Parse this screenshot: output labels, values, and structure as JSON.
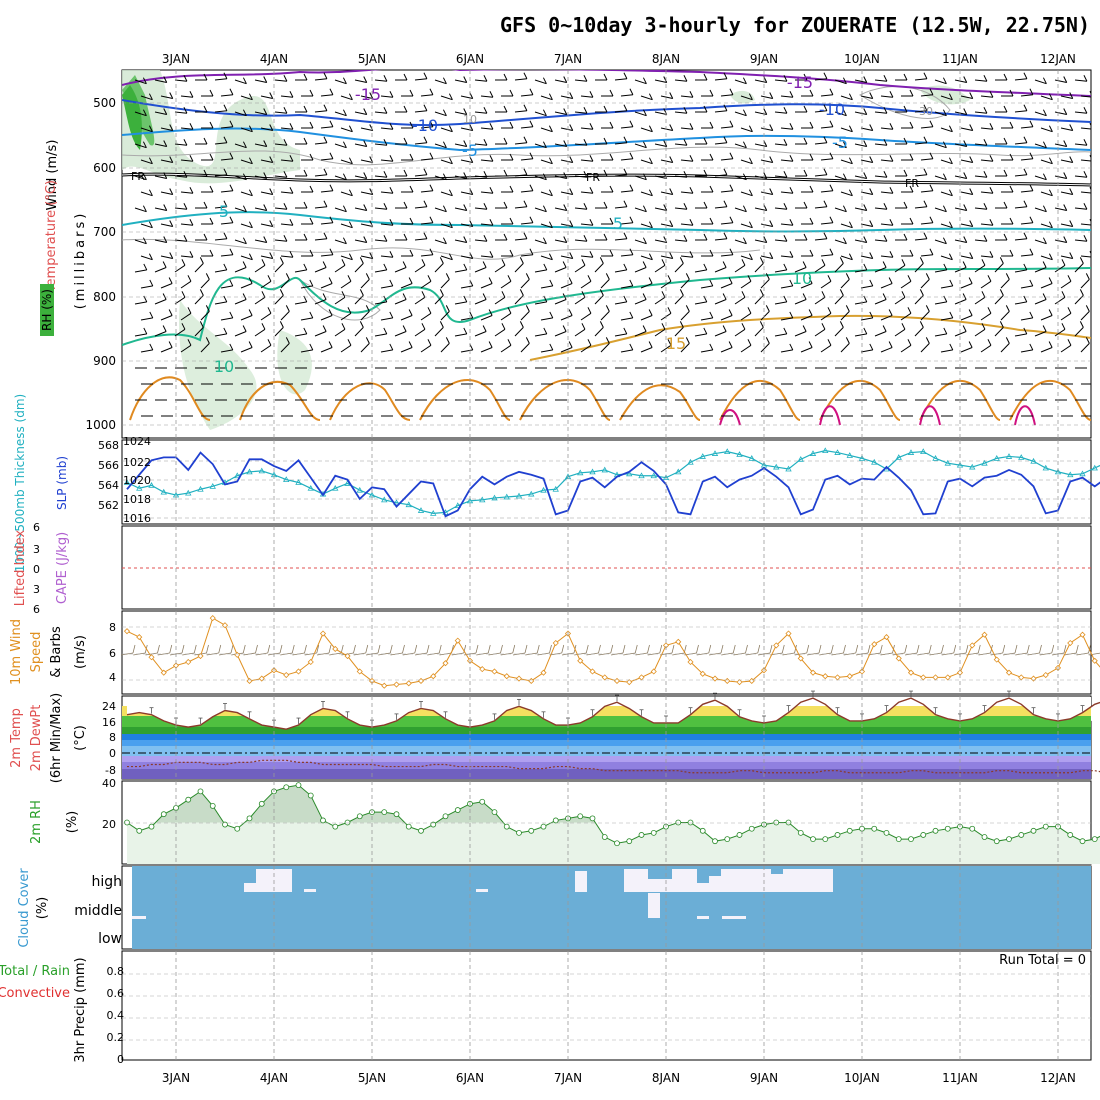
{
  "title": "GFS 0~10day 3-hourly for ZOUERATE (12.5W, 22.75N)",
  "date_labels": [
    "3JAN",
    "4JAN",
    "5JAN",
    "6JAN",
    "7JAN",
    "8JAN",
    "9JAN",
    "10JAN",
    "11JAN",
    "12JAN"
  ],
  "colors": {
    "temp_label": "#e05050",
    "rh_label": "#2aa02a",
    "cape_label": "#b060d0",
    "thick_label": "#20b0c0",
    "slp_label": "#2040d0",
    "wind_label": "#e09020",
    "cloud_label": "#3a9ad0",
    "cloud_bg": "#6baed6",
    "precip_total": "#2aa02a",
    "precip_conv": "#e03030",
    "rh_fill": "#e8f3e8",
    "rh_line": "#2a8a2a"
  },
  "panels": {
    "profile": {
      "ylabel_wind": "Wind (m/s)",
      "ylabel_temp": "Temperature (°C)",
      "ylabel_rh": "RH (%)",
      "ylabel_mb": "(millibars)",
      "yticks": [
        "500",
        "600",
        "700",
        "800",
        "900",
        "1000"
      ],
      "contour_labels": [
        {
          "text": "-15",
          "color": "#8020b0"
        },
        {
          "text": "-15",
          "color": "#8020b0"
        },
        {
          "text": "-10",
          "color": "#2050d0"
        },
        {
          "text": "-10",
          "color": "#2050d0"
        },
        {
          "text": "-5",
          "color": "#2090e0"
        },
        {
          "text": "-5",
          "color": "#2090e0"
        },
        {
          "text": "FR",
          "color": "#000000"
        },
        {
          "text": "FR",
          "color": "#000000"
        },
        {
          "text": "FR",
          "color": "#000000"
        },
        {
          "text": "5",
          "color": "#20b0c0"
        },
        {
          "text": "5",
          "color": "#20b0c0"
        },
        {
          "text": "10",
          "color": "#20b890"
        },
        {
          "text": "10",
          "color": "#20b890"
        },
        {
          "text": "15",
          "color": "#d8a030"
        },
        {
          "text": "10",
          "color": "#999999"
        },
        {
          "text": "30",
          "color": "#999999"
        }
      ]
    },
    "slp": {
      "ylabel_thick": "1000~500mb Thickness (dm)",
      "ylabel_slp": "SLP (mb)",
      "left_ticks": [
        "568",
        "566",
        "564",
        "562"
      ],
      "right_ticks": [
        "1024",
        "1022",
        "1020",
        "1018",
        "1016"
      ]
    },
    "cape": {
      "ylabel_li": "Lifted Index",
      "ylabel_cape": "CAPE (J/kg)",
      "yticks": [
        "6",
        "3",
        "0",
        "3",
        "6"
      ]
    },
    "wind10": {
      "ylabel_1": "10m Wind",
      "ylabel_2": "Speed",
      "ylabel_3": "& Barbs",
      "ylabel_unit": "(m/s)",
      "yticks": [
        "8",
        "6",
        "4"
      ]
    },
    "temp2m": {
      "ylabel_1": "2m Temp",
      "ylabel_2": "2m DewPt",
      "ylabel_3": "(6hr Min/Max)",
      "ylabel_unit": "(°C)",
      "yticks": [
        "24",
        "16",
        "8",
        "0",
        "-8"
      ]
    },
    "rh2m": {
      "ylabel": "2m RH",
      "ylabel_unit": "(%)",
      "yticks": [
        "40",
        "20"
      ]
    },
    "cloud": {
      "ylabel": "Cloud Cover",
      "ylabel_unit": "(%)",
      "levels": [
        "high",
        "middle",
        "low"
      ]
    },
    "precip": {
      "ylabel_total": "Total / Rain",
      "ylabel_conv": "Convective",
      "ylabel_unit": "3hr Precip (mm)",
      "yticks": [
        "0.8",
        "0.6",
        "0.4",
        "0.2",
        "0"
      ],
      "run_total": "Run Total = 0"
    }
  },
  "chart_data": [
    {
      "type": "line",
      "panel": "sea level pressure and 1000-500mb thickness",
      "x_unit": "3-hourly steps from 2 JAN 12Z",
      "series": [
        {
          "name": "SLP (mb)",
          "color": "#2040d0",
          "values": [
            1019.0,
            1020.5,
            1022.0,
            1022.3,
            1022.3,
            1021.0,
            1022.8,
            1021.6,
            1019.5,
            1019.8,
            1022.1,
            1022.1,
            1021.4,
            1020.9,
            1022.0,
            1020.2,
            1018.4,
            1020.4,
            1020.0,
            1018.0,
            1019.2,
            1019.0,
            1017.2,
            1018.5,
            1019.8,
            1019.6,
            1016.2,
            1016.8,
            1019.0,
            1020.3,
            1019.5,
            1020.3,
            1020.8,
            1020.5,
            1020.1,
            1016.4,
            1016.8,
            1019.8,
            1020.2,
            1019.2,
            1020.3,
            1020.8,
            1021.8,
            1020.9,
            1019.5,
            1016.6,
            1016.4,
            1019.8,
            1020.3,
            1019.2,
            1020.0,
            1020.4,
            1021.2,
            1020.3,
            1019.2,
            1016.4,
            1016.9,
            1020.0,
            1020.4,
            1019.5,
            1020.1,
            1020.0,
            1021.3,
            1020.2,
            1018.9,
            1016.4,
            1016.5,
            1019.8,
            1020.1,
            1019.3,
            1020.2,
            1020.4,
            1021.0,
            1020.5,
            1019.3,
            1016.5,
            1016.8,
            1019.8,
            1020.2,
            1019.3,
            1020.2,
            1020.4,
            1020.6,
            1019.8
          ]
        },
        {
          "name": "1000~500mb Thickness (dm)",
          "color": "#20b0c0",
          "values": [
            564.2,
            563.6,
            563.9,
            563.2,
            562.9,
            563.1,
            563.5,
            563.8,
            564.2,
            564.9,
            565.3,
            565.4,
            565.0,
            564.5,
            564.2,
            563.6,
            563.0,
            563.6,
            564.1,
            563.4,
            562.9,
            562.4,
            562.1,
            561.9,
            561.3,
            561.0,
            561.1,
            561.8,
            562.3,
            562.4,
            562.6,
            562.7,
            562.8,
            563.0,
            563.4,
            563.5,
            564.8,
            565.2,
            565.3,
            565.5,
            565.0,
            565.1,
            564.9,
            564.9,
            564.7,
            565.3,
            566.3,
            566.9,
            567.2,
            567.4,
            567.1,
            566.7,
            566.0,
            565.8,
            565.6,
            566.6,
            567.2,
            567.5,
            567.3,
            567.0,
            566.7,
            566.3,
            565.6,
            566.8,
            567.3,
            567.4,
            566.7,
            566.2,
            566.0,
            565.8,
            566.2,
            566.7,
            566.9,
            566.8,
            566.4,
            565.7,
            565.3,
            565.0,
            565.1,
            565.7,
            566.3,
            566.0,
            565.5,
            564.9
          ]
        }
      ],
      "ylim_slp": [
        1015.5,
        1024.0
      ],
      "ylim_thick": [
        560.0,
        568.5
      ]
    },
    {
      "type": "line",
      "panel": "10m wind speed",
      "x_unit": "3-hourly steps from 2 JAN 12Z",
      "series": [
        {
          "name": "10m Wind Speed (m/s)",
          "color": "#e09020",
          "values": [
            7.8,
            7.3,
            5.6,
            4.3,
            4.9,
            5.2,
            5.7,
            8.9,
            8.3,
            5.8,
            3.6,
            3.8,
            4.5,
            4.1,
            4.4,
            5.2,
            7.6,
            6.3,
            5.7,
            4.4,
            3.6,
            3.2,
            3.3,
            3.4,
            3.6,
            4.0,
            5.1,
            7.0,
            5.3,
            4.6,
            4.4,
            4.0,
            3.8,
            3.6,
            4.3,
            6.8,
            7.6,
            5.3,
            4.4,
            3.9,
            3.6,
            3.5,
            3.9,
            4.4,
            6.6,
            6.9,
            5.2,
            4.2,
            3.8,
            3.6,
            3.5,
            3.6,
            4.5,
            6.6,
            7.6,
            5.5,
            4.3,
            4.0,
            3.9,
            4.0,
            4.4,
            6.7,
            7.3,
            5.5,
            4.3,
            3.9,
            3.9,
            3.9,
            4.3,
            6.6,
            7.5,
            5.4,
            4.3,
            3.9,
            3.8,
            4.1,
            4.7,
            6.8,
            7.5,
            5.3,
            4.1,
            3.7,
            3.5,
            3.7
          ]
        }
      ],
      "ylim": [
        2.5,
        9.5
      ]
    },
    {
      "type": "area",
      "panel": "2m temperature",
      "x_unit": "3-hourly steps from 2 JAN 12Z",
      "series": [
        {
          "name": "2m Temp (°C)",
          "color": "#8b3a2a",
          "values": [
            19,
            20,
            19,
            16,
            14,
            13,
            14,
            18,
            21,
            20,
            17,
            14,
            13,
            12,
            14,
            19,
            22,
            21,
            17,
            14,
            13,
            14,
            16,
            20,
            22,
            21,
            17,
            14,
            13,
            14,
            16,
            21,
            23,
            21,
            17,
            14,
            14,
            15,
            18,
            23,
            25,
            22,
            18,
            15,
            15,
            15,
            19,
            24,
            26,
            23,
            18,
            16,
            15,
            16,
            20,
            25,
            27,
            24,
            19,
            16,
            16,
            17,
            20,
            25,
            27,
            24,
            19,
            17,
            16,
            17,
            20,
            25,
            27,
            24,
            19,
            17,
            16,
            17,
            20,
            24,
            26,
            23,
            18,
            16
          ]
        },
        {
          "name": "2m DewPt (°C)",
          "color": "#8b3a2a",
          "values": [
            -6,
            -6,
            -5,
            -5,
            -4,
            -4,
            -4,
            -5,
            -5,
            -4,
            -4,
            -3,
            -3,
            -3,
            -4,
            -4,
            -5,
            -5,
            -5,
            -5,
            -5,
            -6,
            -6,
            -6,
            -6,
            -5,
            -5,
            -6,
            -6,
            -6,
            -6,
            -6,
            -7,
            -7,
            -7,
            -6,
            -6,
            -7,
            -7,
            -8,
            -8,
            -8,
            -8,
            -8,
            -8,
            -8,
            -9,
            -9,
            -9,
            -9,
            -8,
            -8,
            -9,
            -9,
            -9,
            -9,
            -9,
            -8,
            -8,
            -9,
            -9,
            -9,
            -9,
            -9,
            -8,
            -8,
            -9,
            -9,
            -9,
            -9,
            -9,
            -8,
            -8,
            -9,
            -9,
            -9,
            -9,
            -9,
            -8,
            -8,
            -9,
            -9,
            -9,
            -9
          ]
        }
      ],
      "ylim": [
        -12,
        28
      ]
    },
    {
      "type": "area",
      "panel": "2m relative humidity",
      "x_unit": "3-hourly steps from 2 JAN 12Z",
      "series": [
        {
          "name": "2m RH (%)",
          "color": "#2a8a2a",
          "values": [
            20,
            16,
            18,
            24,
            27,
            31,
            35,
            28,
            19,
            17,
            22,
            29,
            35,
            37,
            38,
            33,
            21,
            18,
            20,
            23,
            25,
            25,
            24,
            18,
            16,
            19,
            23,
            26,
            29,
            30,
            25,
            18,
            15,
            16,
            18,
            21,
            22,
            23,
            22,
            13,
            10,
            11,
            14,
            15,
            18,
            20,
            20,
            16,
            11,
            12,
            14,
            17,
            19,
            20,
            20,
            15,
            12,
            12,
            14,
            16,
            17,
            17,
            15,
            12,
            12,
            14,
            16,
            17,
            18,
            17,
            13,
            11,
            12,
            14,
            16,
            18,
            18,
            14,
            11,
            12,
            15,
            16,
            18,
            19
          ]
        }
      ],
      "ylim": [
        0,
        40
      ]
    },
    {
      "type": "heatmap",
      "panel": "cloud cover",
      "levels": [
        "high",
        "middle",
        "low"
      ],
      "note": "mostly clear; small patches of high cloud near 4JAN and 8JAN-9JAN"
    },
    {
      "type": "bar",
      "panel": "3hr precipitation",
      "values": [],
      "ylim": [
        0,
        1.0
      ]
    }
  ]
}
